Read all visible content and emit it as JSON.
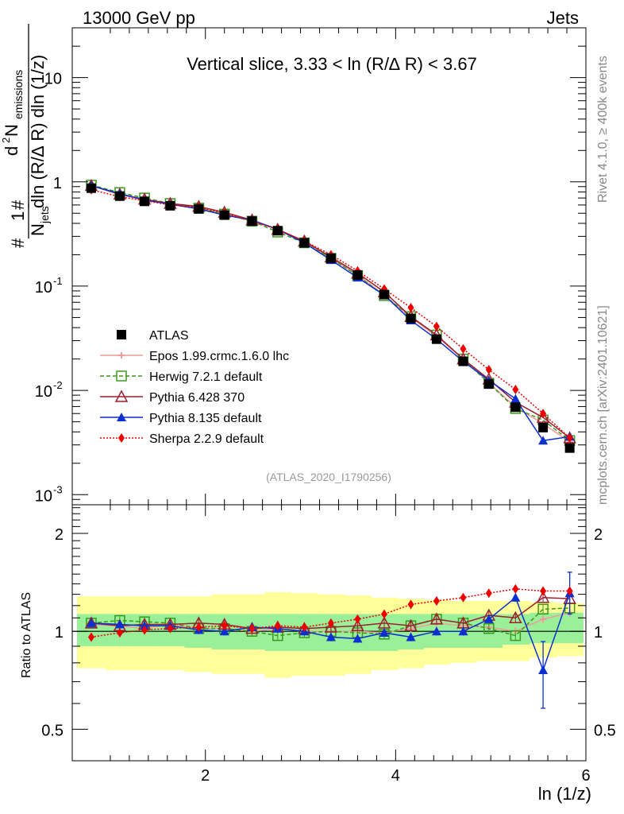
{
  "header": {
    "energy_label": "13000 GeV pp",
    "category_label": "Jets",
    "slice_title": "Vertical slice, 3.33 < ln (R/∆ R) < 3.67",
    "analysis_id": "(ATLAS_2020_I1790256)",
    "rivet_note": "Rivet 4.1.0, ≥ 400k events",
    "mcplots_note": "mcplots.cern.ch [arXiv:2401.10621]"
  },
  "axes": {
    "xlabel": "ln (1/z)",
    "ylabel_ratio": "Ratio to ATLAS",
    "ylabel_main_parts": [
      "#",
      "1",
      "N",
      "jets",
      "d",
      "2",
      " N",
      "emissions",
      "dln (R/∆ R) dln (1/z)"
    ],
    "xticks": [
      "2",
      "4",
      "6"
    ],
    "yticks_main": [
      {
        "base": "10",
        "exp": "-3"
      },
      {
        "base": "10",
        "exp": "-2"
      },
      {
        "base": "10",
        "exp": "-1"
      },
      {
        "base": "1",
        "exp": ""
      },
      {
        "base": "10",
        "exp": ""
      }
    ],
    "yticks_ratio": [
      "0.5",
      "1",
      "2"
    ]
  },
  "legend": [
    {
      "label": "ATLAS",
      "color": "#000000",
      "marker": "square-filled",
      "line": "none"
    },
    {
      "label": "Epos 1.99.crmc.1.6.0 lhc",
      "color": "#f29b9b",
      "marker": "cross",
      "line": "solid"
    },
    {
      "label": "Herwig 7.2.1 default",
      "color": "#3a9a1c",
      "marker": "square-open",
      "line": "dashed"
    },
    {
      "label": "Pythia 6.428 370",
      "color": "#9c1f2e",
      "marker": "triangle-open",
      "line": "solid"
    },
    {
      "label": "Pythia 8.135 default",
      "color": "#0b2fd0",
      "marker": "triangle-filled",
      "line": "solid"
    },
    {
      "label": "Sherpa 2.2.9 default",
      "color": "#ee0000",
      "marker": "diamond-filled",
      "line": "dotted"
    }
  ],
  "chart_data": {
    "type": "line",
    "title": "Vertical slice, 3.33 < ln (R/∆ R) < 3.67",
    "xlabel": "ln (1/z)",
    "ylabel": "(1/N_jets) d2N_emissions / dln(R/∆R) dln(1/z)",
    "xlim": [
      0.6,
      6.0
    ],
    "ylim": [
      0.0008,
      30
    ],
    "yscale": "log",
    "ratio_ylim": [
      0.4,
      2.45
    ],
    "ratio_yscale": "log",
    "x": [
      0.8,
      1.1,
      1.36,
      1.63,
      1.93,
      2.2,
      2.49,
      2.76,
      3.04,
      3.32,
      3.6,
      3.88,
      4.16,
      4.43,
      4.71,
      4.98,
      5.26,
      5.55,
      5.83
    ],
    "data": {
      "name": "ATLAS",
      "values": [
        0.87,
        0.73,
        0.65,
        0.59,
        0.55,
        0.48,
        0.42,
        0.34,
        0.26,
        0.185,
        0.128,
        0.083,
        0.049,
        0.031,
        0.019,
        0.0115,
        0.0069,
        0.0044,
        0.0028
      ]
    },
    "band_inner": [
      0.9,
      0.9,
      0.9,
      0.9,
      0.89,
      0.88,
      0.88,
      0.87,
      0.87,
      0.87,
      0.87,
      0.87,
      0.88,
      0.89,
      0.89,
      0.89,
      0.91,
      0.92,
      0.92
    ],
    "band_inner_hi": [
      1.13,
      1.13,
      1.13,
      1.13,
      1.13,
      1.13,
      1.13,
      1.13,
      1.13,
      1.13,
      1.13,
      1.13,
      1.13,
      1.13,
      1.13,
      1.13,
      1.13,
      1.14,
      1.14
    ],
    "band_outer": [
      0.77,
      0.76,
      0.76,
      0.76,
      0.75,
      0.74,
      0.74,
      0.72,
      0.73,
      0.73,
      0.74,
      0.76,
      0.77,
      0.79,
      0.8,
      0.81,
      0.81,
      0.83,
      0.84
    ],
    "band_outer_hi": [
      1.28,
      1.28,
      1.28,
      1.28,
      1.28,
      1.3,
      1.3,
      1.32,
      1.31,
      1.3,
      1.29,
      1.27,
      1.26,
      1.25,
      1.24,
      1.24,
      1.24,
      1.23,
      1.22
    ],
    "series": [
      {
        "name": "Epos 1.99.crmc.1.6.0 lhc",
        "values": [
          0.92,
          0.76,
          0.66,
          0.62,
          0.56,
          0.49,
          0.42,
          0.35,
          0.26,
          0.185,
          0.128,
          0.082,
          0.05,
          0.033,
          0.02,
          0.0118,
          0.0069,
          0.0048,
          0.0032
        ],
        "ratio": [
          1.05,
          1.04,
          1.02,
          1.05,
          1.02,
          1.02,
          1.0,
          1.02,
          1.0,
          1.0,
          1.0,
          0.99,
          1.02,
          1.06,
          1.04,
          1.03,
          1.0,
          1.09,
          1.14
        ],
        "ratio_err": []
      },
      {
        "name": "Herwig 7.2.1 default",
        "values": [
          0.93,
          0.79,
          0.7,
          0.62,
          0.56,
          0.49,
          0.42,
          0.33,
          0.26,
          0.185,
          0.126,
          0.081,
          0.051,
          0.034,
          0.02,
          0.0117,
          0.0067,
          0.0052,
          0.0033
        ],
        "ratio": [
          1.06,
          1.08,
          1.07,
          1.06,
          1.02,
          1.02,
          1.0,
          0.97,
          0.99,
          1.0,
          0.99,
          0.98,
          1.04,
          1.09,
          1.06,
          1.02,
          0.97,
          1.17,
          1.18
        ],
        "ratio_err": []
      },
      {
        "name": "Pythia 6.428 370",
        "values": [
          0.92,
          0.76,
          0.68,
          0.62,
          0.58,
          0.51,
          0.43,
          0.35,
          0.27,
          0.19,
          0.133,
          0.088,
          0.051,
          0.034,
          0.02,
          0.0128,
          0.0077,
          0.0055,
          0.0035
        ],
        "ratio": [
          1.06,
          1.04,
          1.05,
          1.05,
          1.06,
          1.05,
          1.02,
          1.03,
          1.02,
          1.03,
          1.04,
          1.06,
          1.04,
          1.09,
          1.06,
          1.12,
          1.1,
          1.27,
          1.26
        ],
        "ratio_err": []
      },
      {
        "name": "Pythia 8.135 default",
        "values": [
          0.92,
          0.77,
          0.67,
          0.61,
          0.55,
          0.48,
          0.43,
          0.35,
          0.26,
          0.178,
          0.121,
          0.082,
          0.047,
          0.031,
          0.019,
          0.0125,
          0.0083,
          0.0033,
          0.0036
        ],
        "ratio": [
          1.06,
          1.05,
          1.04,
          1.04,
          1.01,
          1.0,
          1.03,
          1.02,
          1.0,
          0.96,
          0.95,
          0.99,
          0.96,
          1.0,
          1.0,
          1.09,
          1.27,
          0.76,
          1.31
        ],
        "ratio_err": [
          [],
          [],
          [],
          [],
          [],
          [],
          [],
          [],
          [],
          [],
          [],
          [],
          [],
          [],
          [],
          [],
          [],
          [
            0.58,
            0.93
          ],
          [
            1.13,
            1.52
          ]
        ]
      },
      {
        "name": "Sherpa 2.2.9 default",
        "values": [
          0.84,
          0.72,
          0.66,
          0.6,
          0.57,
          0.5,
          0.42,
          0.35,
          0.27,
          0.2,
          0.14,
          0.094,
          0.062,
          0.041,
          0.025,
          0.0158,
          0.0102,
          0.006,
          0.0035
        ],
        "ratio": [
          0.96,
          0.99,
          1.01,
          1.02,
          1.03,
          1.04,
          1.02,
          1.04,
          1.03,
          1.06,
          1.09,
          1.13,
          1.21,
          1.24,
          1.27,
          1.31,
          1.35,
          1.33,
          1.33
        ],
        "ratio_err": []
      }
    ]
  }
}
